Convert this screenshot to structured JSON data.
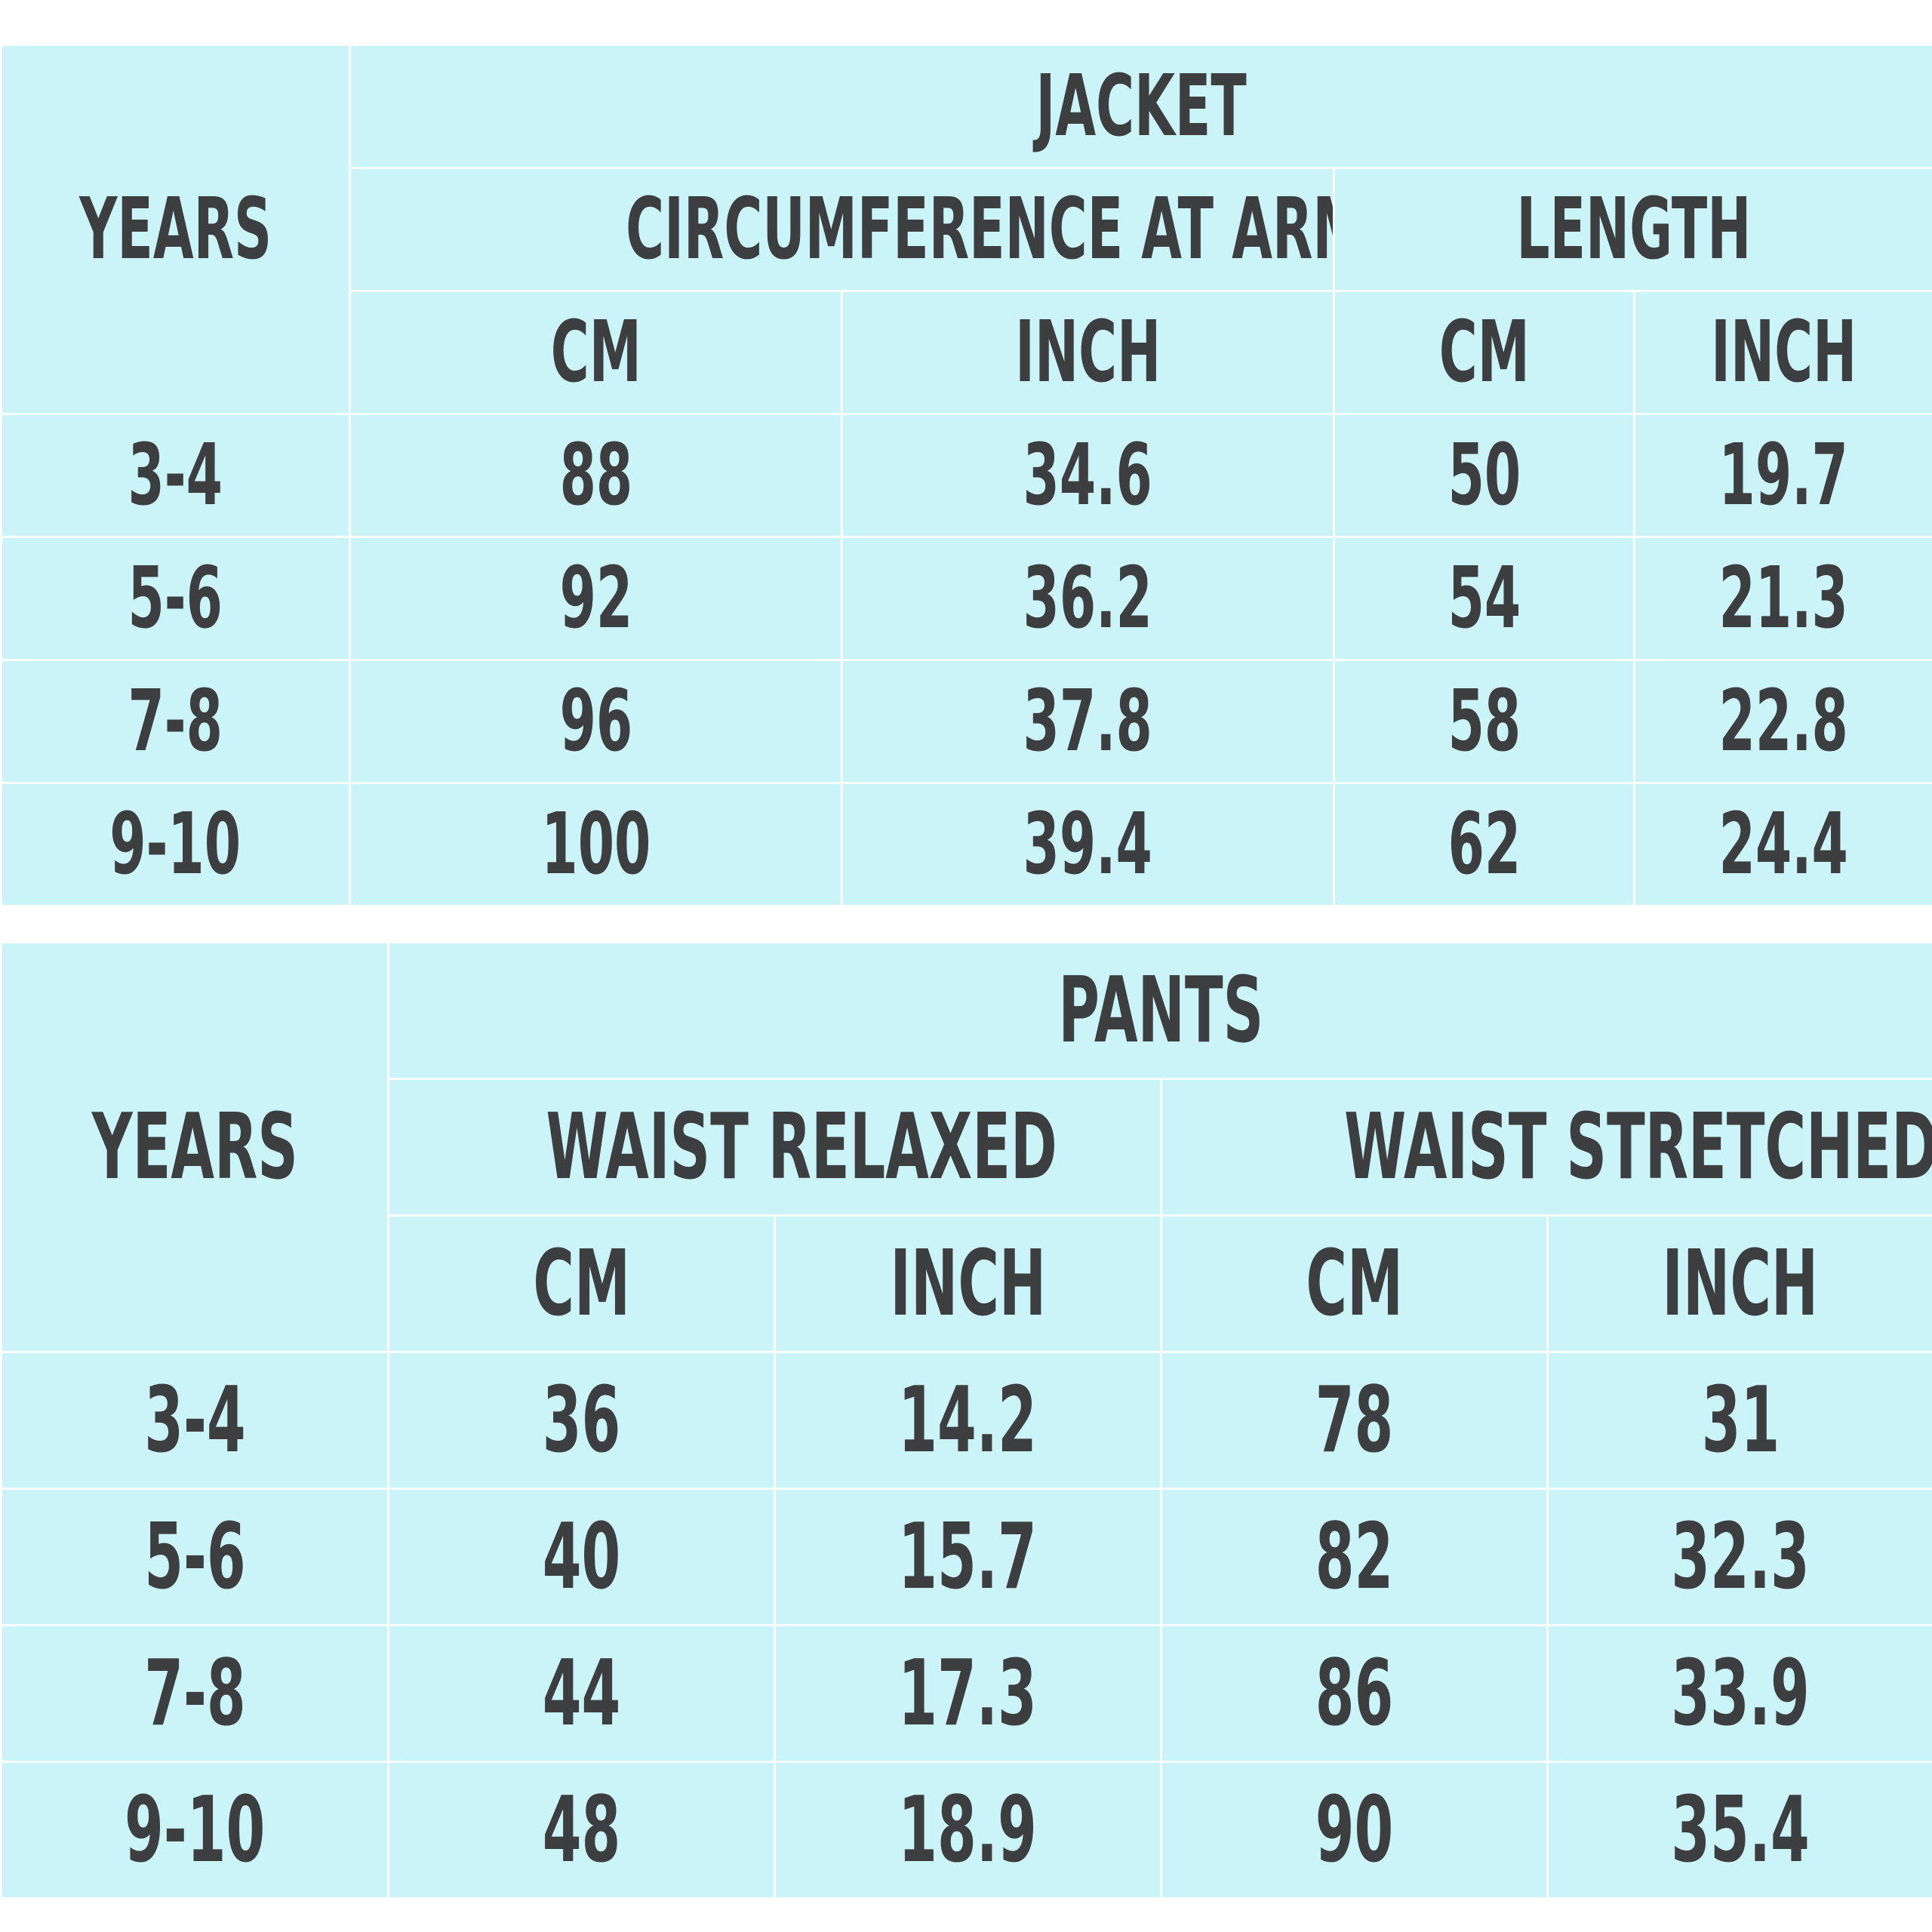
{
  "jacket": {
    "years_label": "YEARS",
    "title": "JACKET",
    "groups": [
      "CIRCUMFERENCE AT ARMHOLE",
      "LENGTH"
    ],
    "units": [
      "CM",
      "INCH",
      "CM",
      "INCH"
    ],
    "rows": [
      {
        "years": "3-4",
        "values": [
          "88",
          "34.6",
          "50",
          "19.7"
        ]
      },
      {
        "years": "5-6",
        "values": [
          "92",
          "36.2",
          "54",
          "21.3"
        ]
      },
      {
        "years": "7-8",
        "values": [
          "96",
          "37.8",
          "58",
          "22.8"
        ]
      },
      {
        "years": "9-10",
        "values": [
          "100",
          "39.4",
          "62",
          "24.4"
        ]
      }
    ]
  },
  "pants": {
    "years_label": "YEARS",
    "title": "PANTS",
    "groups": [
      "WAIST RELAXED",
      "WAIST STRETCHED"
    ],
    "units": [
      "CM",
      "INCH",
      "CM",
      "INCH"
    ],
    "rows": [
      {
        "years": "3-4",
        "values": [
          "36",
          "14.2",
          "78",
          "31"
        ]
      },
      {
        "years": "5-6",
        "values": [
          "40",
          "15.7",
          "82",
          "32.3"
        ]
      },
      {
        "years": "7-8",
        "values": [
          "44",
          "17.3",
          "86",
          "33.9"
        ]
      },
      {
        "years": "9-10",
        "values": [
          "48",
          "18.9",
          "90",
          "35.4"
        ]
      }
    ]
  },
  "colors": {
    "cell_background": "#cbf4f8",
    "grid_lines": "#ffffff",
    "text": "#3d3e40"
  }
}
